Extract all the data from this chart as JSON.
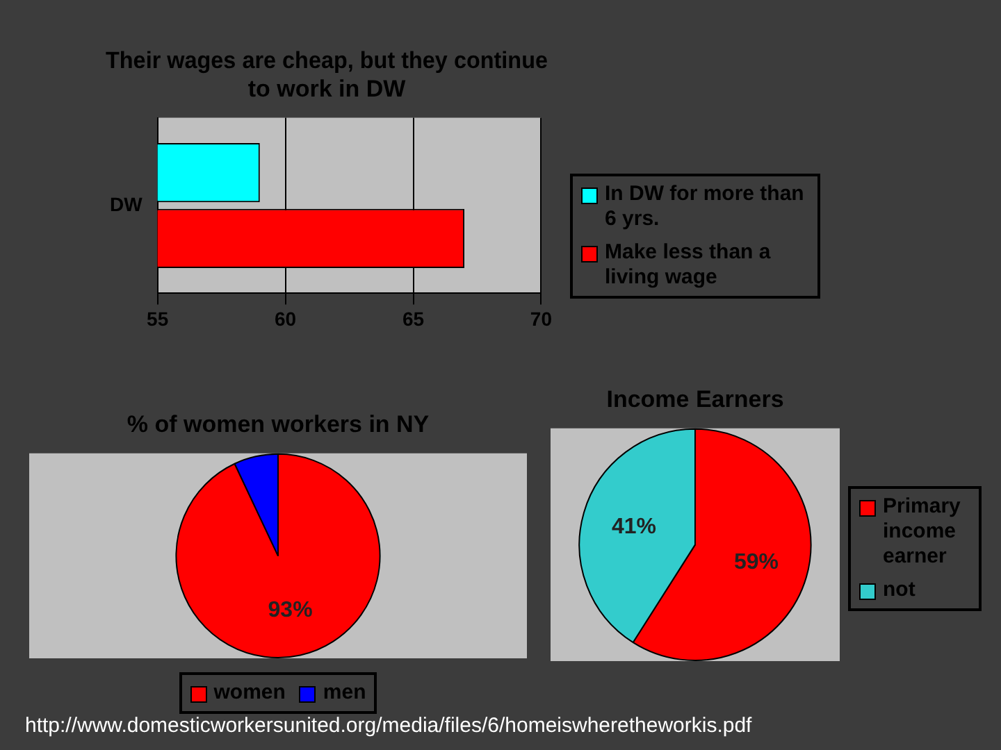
{
  "chart_data": [
    {
      "type": "bar",
      "title": [
        "Their wages are cheap, but they continue",
        "to work in DW"
      ],
      "orientation": "horizontal",
      "categories": [
        "DW"
      ],
      "series": [
        {
          "name": "In DW for more than 6 yrs.",
          "color": "#00ffff",
          "values": [
            59
          ]
        },
        {
          "name": "Make less than a living wage",
          "color": "#ff0000",
          "values": [
            67
          ]
        }
      ],
      "xlim": [
        55,
        70
      ],
      "xticks": [
        55,
        60,
        65,
        70
      ],
      "grid": "x",
      "legend": "right"
    },
    {
      "type": "pie",
      "title": "% of women workers in NY",
      "categories": [
        "women",
        "men"
      ],
      "values": [
        93,
        7
      ],
      "colors": [
        "#ff0000",
        "#0000ff"
      ],
      "value_labels": [
        "93%",
        null
      ],
      "legend": "bottom"
    },
    {
      "type": "pie",
      "title": "Income Earners",
      "categories": [
        "Primary income earner",
        "not"
      ],
      "values": [
        59,
        41
      ],
      "colors": [
        "#ff0000",
        "#33cccc"
      ],
      "value_labels": [
        "59%",
        "41%"
      ],
      "legend": "right",
      "annotations": [
        "http://www.domesticworkersunited.org/media/files/6/homeiswheretheworkis.pdf"
      ]
    }
  ]
}
